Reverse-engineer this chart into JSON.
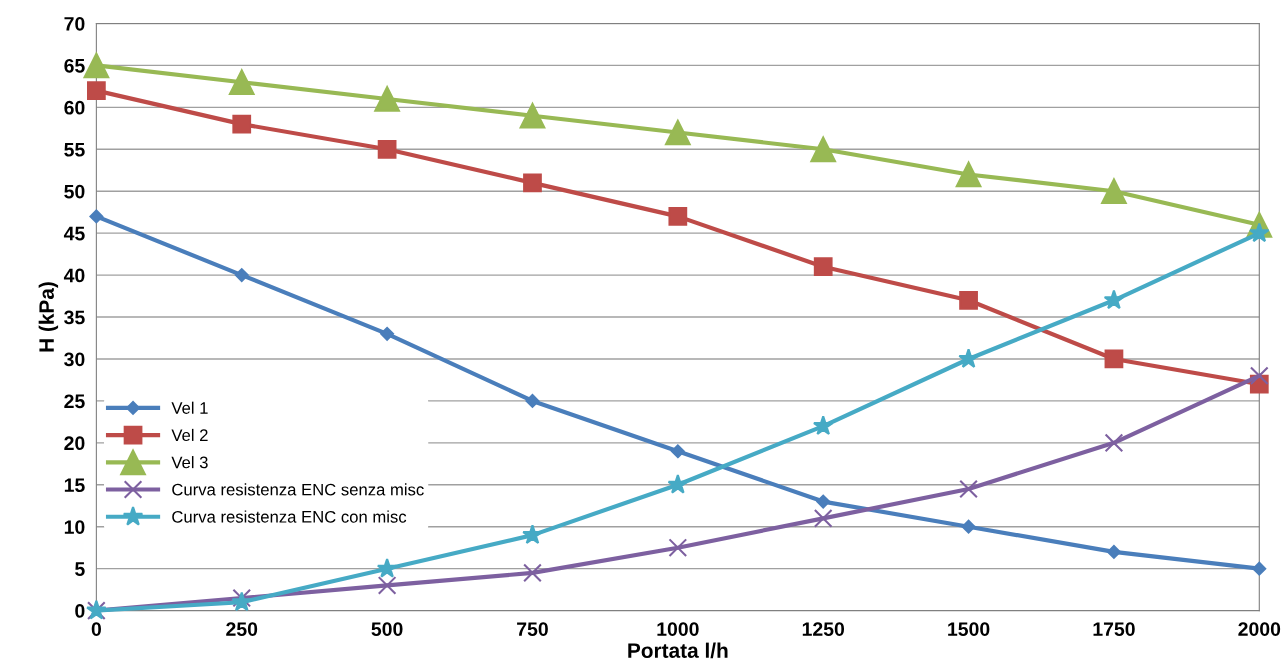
{
  "chart_data": {
    "type": "line",
    "xlabel": "Portata l/h",
    "ylabel": "H (kPa)",
    "x": [
      0,
      250,
      500,
      750,
      1000,
      1250,
      1500,
      1750,
      2000
    ],
    "xlim": [
      0,
      2000
    ],
    "xticks": [
      0,
      250,
      500,
      750,
      1000,
      1250,
      1500,
      1750,
      2000
    ],
    "ylim": [
      0,
      70
    ],
    "yticks": [
      0,
      5,
      10,
      15,
      20,
      25,
      30,
      35,
      40,
      45,
      50,
      55,
      60,
      65,
      70
    ],
    "grid": "y",
    "legend": "left",
    "line_style": "solid",
    "series": [
      {
        "name": "Vel 1",
        "color": "#4a7ebb",
        "marker": "diamond",
        "values": [
          47,
          40,
          33,
          25,
          19,
          13,
          10,
          7,
          5
        ]
      },
      {
        "name": "Vel 2",
        "color": "#be4b48",
        "marker": "square",
        "values": [
          62,
          58,
          55,
          51,
          47,
          41,
          37,
          30,
          27
        ]
      },
      {
        "name": "Vel 3",
        "color": "#98b954",
        "marker": "triangle",
        "values": [
          65,
          63,
          61,
          59,
          57,
          55,
          52,
          50,
          46
        ]
      },
      {
        "name": "Curva resistenza ENC senza misc",
        "color": "#7d60a0",
        "marker": "cross",
        "values": [
          0,
          1.5,
          3,
          4.5,
          7.5,
          11,
          14.5,
          20,
          28
        ]
      },
      {
        "name": "Curva resistenza ENC con misc",
        "color": "#46aac5",
        "marker": "star",
        "values": [
          0,
          1,
          5,
          9,
          15,
          22,
          30,
          37,
          45
        ]
      }
    ]
  }
}
